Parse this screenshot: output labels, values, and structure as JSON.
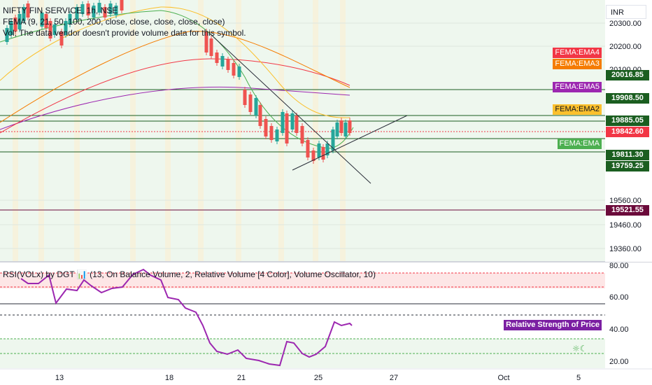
{
  "symbol_line": "NIFTY FIN SERVICE, 1h, NSE",
  "fema_line": "FEMA (9, 21, 50, 100, 200, close, close, close, close, close)",
  "vol_line": "Vol; The data vendor doesn't provide volume data for this symbol.",
  "rsi_line": "RSI(VOLx) by DGT 📊 (13, On Balance Volume, 2, Relative Volume [4 Color], Volume Oscillator, 10)",
  "currency": "INR",
  "price_axis": [
    "20300.00",
    "20200.00",
    "20100.00",
    "19560.00",
    "19460.00",
    "19360.00"
  ],
  "rsi_axis": [
    "80.00",
    "60.00",
    "40.00",
    "20.00"
  ],
  "time_axis": [
    "13",
    "18",
    "21",
    "25",
    "27",
    "Oct",
    "5"
  ],
  "price_tags": [
    {
      "label": "20016.85",
      "color": "#1b5e20"
    },
    {
      "label": "19908.50",
      "color": "#1b5e20"
    },
    {
      "label": "19885.05",
      "color": "#1b5e20"
    },
    {
      "label": "19842.60",
      "color": "#f23645"
    },
    {
      "label": "19811.30",
      "color": "#1b5e20"
    },
    {
      "label": "19759.25",
      "color": "#1b5e20"
    },
    {
      "label": "19521.55",
      "color": "#6b0a3a"
    }
  ],
  "ema_tags": [
    {
      "label": "FEMA:EMA4",
      "color": "#f23645"
    },
    {
      "label": "FEMA:EMA3",
      "color": "#f57c00"
    },
    {
      "label": "FEMA:EMA5",
      "color": "#9c27b0"
    },
    {
      "label": "FEMA:EMA2",
      "color": "#fbc02d",
      "text": "#131722"
    },
    {
      "label": "FEMA:EMA",
      "color": "#4caf50"
    }
  ],
  "rsi_tag": "Relative Strength of Price",
  "colors": {
    "up": "#26a69a",
    "down": "#ef5350",
    "bg_green": "#e8f5e9",
    "rsi_line": "#9c27b0"
  }
}
